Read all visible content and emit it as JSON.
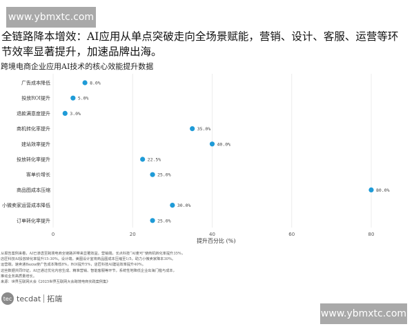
{
  "watermark": "www.ybmxtc.com",
  "headline": "全链路降本增效：AI应用从单点突破走向全场景赋能，营销、设计、客服、运营等环节效率显著提升，加速品牌出海。",
  "chart_data": {
    "type": "scatter",
    "title": "跨境电商企业应用AI技术的核心效能提升数据",
    "xlabel": "提升百分比 (%)",
    "ylabel": "",
    "xlim": [
      0,
      85
    ],
    "xticks": [
      "0",
      "20",
      "40",
      "60",
      "80"
    ],
    "grid": "vertical",
    "color": "#1f9bd7",
    "categories": [
      "广告成本降低",
      "投放ROI提升",
      "退款满意度提升",
      "商机转化率提升",
      "建站效率提升",
      "投放转化率提升",
      "客单价增长",
      "商品图成本压缩",
      "小微卖家运营成本降低",
      "订单转化率提升"
    ],
    "values": [
      8.0,
      5.0,
      3.0,
      35.0,
      40.0,
      22.5,
      25.0,
      80.0,
      30.0,
      25.0
    ],
    "data_labels": [
      "8.0%",
      "5.0%",
      "3.0%",
      "35.0%",
      "40.0%",
      "22.5%",
      "25.0%",
      "80.0%",
      "30.0%",
      "25.0%"
    ]
  },
  "notes": [
    "从报告案例来看，AI已渗透至跨境电商全链路并带来显著效益。营销端，长点科技“AI麦可”使商机转化率提升35%，",
    "店匠科技AI投放转化率提升15-30%。设计端，美图设计室将商品图成本压缩至1/5，助力小微卖家降本30%。",
    "运营端，速卖通Bazza使广告成本降低8%，ROI提升5%，店匠科技AI建站效率提升40%。",
    "这些数据共同印证，AI正通过优化内容生成、精准营销、智能客服等环节，系统性地降低企业出海门槛与成本，",
    "推动业务高质量增长。",
    "来源：世界互联网大会《2025世界互联网大会跨境电商实践案例集》"
  ],
  "logo": {
    "latin": "tecdat",
    "chinese": "拓端"
  }
}
